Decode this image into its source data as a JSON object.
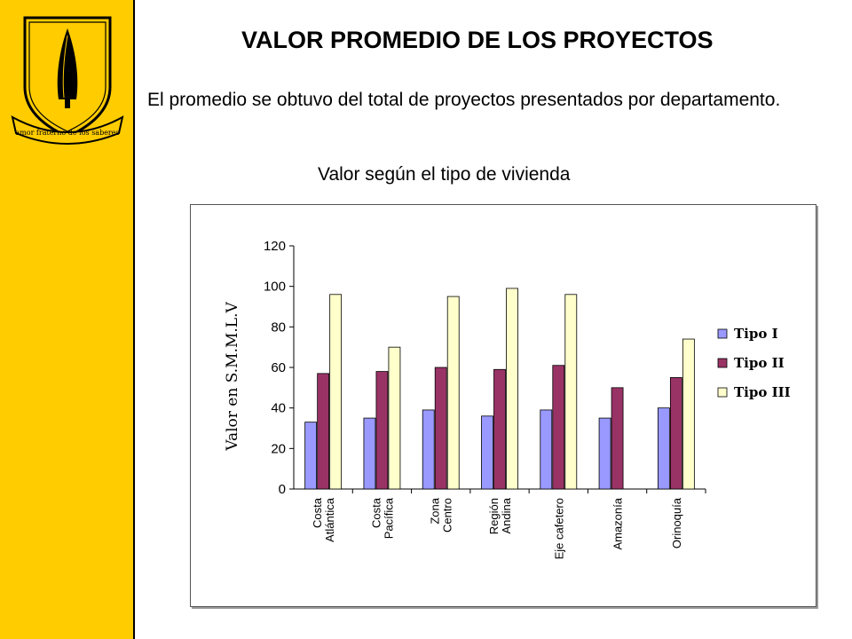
{
  "sidebar": {
    "background": "#FFCC00",
    "emblem_motto": "amor fraterno de los saberes"
  },
  "page": {
    "title": "VALOR PROMEDIO DE LOS PROYECTOS",
    "subtitle": "El promedio se obtuvo del total de proyectos presentados por departamento.",
    "chart_caption": "Valor según el tipo de vivienda"
  },
  "chart_data": {
    "type": "bar",
    "title": "Valor según el tipo de vivienda",
    "xlabel": "",
    "ylabel": "Valor en S.M.M.L.V",
    "ylim": [
      0,
      120
    ],
    "yticks": [
      0,
      20,
      40,
      60,
      80,
      100,
      120
    ],
    "grid": false,
    "legend_position": "right",
    "categories": [
      [
        "Costa",
        "Atlántica"
      ],
      [
        "Costa",
        "Pacífica"
      ],
      [
        "Zona",
        "Centro"
      ],
      [
        "Región",
        "Andina"
      ],
      [
        "Eje cafetero"
      ],
      [
        "Amazonía"
      ],
      [
        "Orinoquía"
      ]
    ],
    "series": [
      {
        "name": "Tipo I",
        "color": "#9999FF",
        "values": [
          33,
          35,
          39,
          36,
          39,
          35,
          40
        ]
      },
      {
        "name": "Tipo II",
        "color": "#993366",
        "values": [
          57,
          58,
          60,
          59,
          61,
          50,
          55
        ]
      },
      {
        "name": "Tipo III",
        "color": "#FFFFCC",
        "values": [
          96,
          70,
          95,
          99,
          96,
          null,
          74
        ]
      }
    ]
  }
}
